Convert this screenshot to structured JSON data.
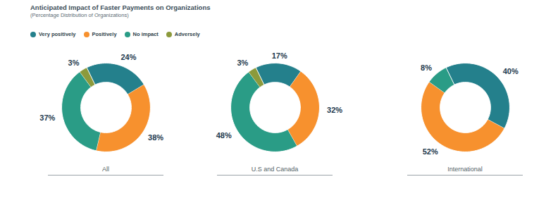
{
  "title": "Anticipated Impact of Faster Payments on Organizations",
  "subtitle": "(Percentage Distribution of Organizations)",
  "legend": "top-left",
  "chart_data": [
    {
      "type": "pie",
      "title": "All",
      "categories": [
        "Very positively",
        "Positively",
        "No impact",
        "Adversely"
      ],
      "values": [
        24,
        38,
        37,
        3
      ],
      "value_labels": [
        "24%",
        "38%",
        "37%",
        "3%"
      ],
      "colors": [
        "#24808c",
        "#f7912e",
        "#2a9c86",
        "#8c9a3c"
      ],
      "data_labels": true
    },
    {
      "type": "pie",
      "title": "U.S and Canada",
      "categories": [
        "Very positively",
        "Positively",
        "No impact",
        "Adversely"
      ],
      "values": [
        17,
        32,
        48,
        3
      ],
      "value_labels": [
        "17%",
        "32%",
        "48%",
        "3%"
      ],
      "colors": [
        "#24808c",
        "#f7912e",
        "#2a9c86",
        "#8c9a3c"
      ],
      "data_labels": true
    },
    {
      "type": "pie",
      "title": "International",
      "categories": [
        "Very positively",
        "Positively",
        "No impact"
      ],
      "values": [
        40,
        52,
        8
      ],
      "value_labels": [
        "40%",
        "52%",
        "8%"
      ],
      "colors": [
        "#24808c",
        "#f7912e",
        "#2a9c86"
      ],
      "data_labels": true
    }
  ]
}
